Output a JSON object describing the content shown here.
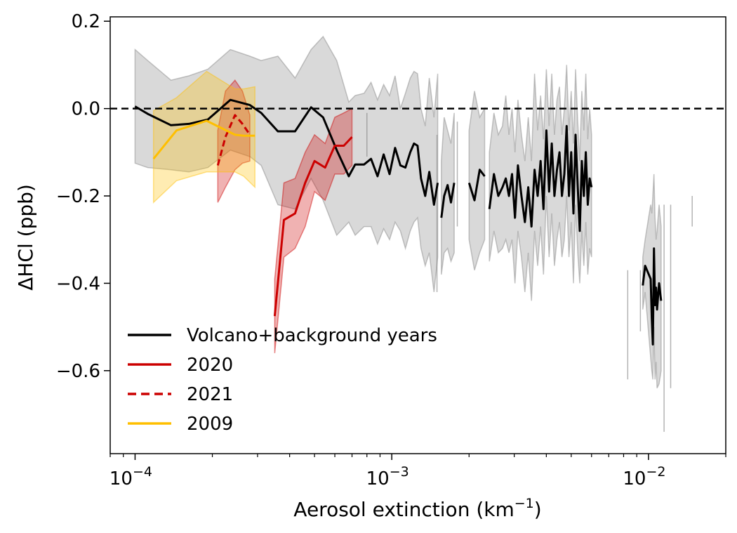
{
  "chart_data": {
    "type": "line",
    "xlabel": "Aerosol extinction (km",
    "xlabel_sup": "−1",
    "xlabel_close": ")",
    "ylabel": "ΔHCl (ppb)",
    "xscale": "log",
    "xlim": [
      8e-05,
      0.02
    ],
    "ylim": [
      -0.79,
      0.21
    ],
    "x_ticks": [
      {
        "value": 0.0001,
        "base": "10",
        "exp": "−4"
      },
      {
        "value": 0.001,
        "base": "10",
        "exp": "−3"
      },
      {
        "value": 0.01,
        "base": "10",
        "exp": "−2"
      }
    ],
    "y_ticks": [
      {
        "value": 0.2,
        "label": "0.2"
      },
      {
        "value": 0.0,
        "label": "0.0"
      },
      {
        "value": -0.2,
        "label": "−0.2"
      },
      {
        "value": -0.4,
        "label": "−0.4"
      },
      {
        "value": -0.6,
        "label": "−0.6"
      }
    ],
    "zero_line": {
      "y": 0.0,
      "style": "dashed",
      "color": "#000000"
    },
    "legend": {
      "placement": "lower-left",
      "entries": [
        {
          "label": "Volcano+background years",
          "color": "#000000",
          "style": "solid"
        },
        {
          "label": "2020",
          "color": "#cc0000",
          "style": "solid"
        },
        {
          "label": "2021",
          "color": "#cc0000",
          "style": "dashed"
        },
        {
          "label": "2009",
          "color": "#ffbf00",
          "style": "solid"
        }
      ]
    },
    "series": [
      {
        "key": "volcano",
        "color": "#000000",
        "band_color": "#808080",
        "style": "solid",
        "segments": [
          {
            "x": [
              0.0001,
              0.000112,
              0.000138,
              0.000162,
              0.000192,
              0.000235,
              0.00028,
              0.00031,
              0.00036,
              0.00042,
              0.000485,
              0.00054,
              0.00061,
              0.00068,
              0.00072,
              0.00078,
              0.00083,
              0.00088,
              0.00093,
              0.00098,
              0.00103,
              0.00108,
              0.00113,
              0.00118,
              0.00122,
              0.00126,
              0.0013,
              0.00135,
              0.0014,
              0.00146,
              0.00151
            ],
            "y": [
              0.005,
              -0.012,
              -0.038,
              -0.035,
              -0.025,
              0.02,
              0.008,
              -0.01,
              -0.052,
              -0.052,
              0.003,
              -0.02,
              -0.095,
              -0.155,
              -0.128,
              -0.128,
              -0.115,
              -0.155,
              -0.105,
              -0.15,
              -0.09,
              -0.13,
              -0.135,
              -0.1,
              -0.08,
              -0.085,
              -0.16,
              -0.2,
              -0.145,
              -0.22,
              -0.17
            ],
            "upper": [
              0.135,
              0.11,
              0.065,
              0.075,
              0.09,
              0.135,
              0.12,
              0.11,
              0.12,
              0.07,
              0.135,
              0.165,
              0.11,
              0.015,
              0.03,
              0.035,
              0.06,
              0.02,
              0.055,
              0.03,
              0.075,
              0.0,
              0.035,
              0.07,
              0.085,
              0.08,
              0.0,
              -0.04,
              0.07,
              -0.02,
              0.08
            ],
            "lower": [
              -0.125,
              -0.135,
              -0.14,
              -0.145,
              -0.135,
              -0.095,
              -0.11,
              -0.13,
              -0.22,
              -0.23,
              -0.16,
              -0.21,
              -0.29,
              -0.26,
              -0.29,
              -0.27,
              -0.27,
              -0.31,
              -0.275,
              -0.3,
              -0.26,
              -0.28,
              -0.32,
              -0.28,
              -0.26,
              -0.25,
              -0.32,
              -0.36,
              -0.33,
              -0.42,
              -0.34
            ]
          },
          {
            "x": [
              0.00156,
              0.0016,
              0.00165,
              0.0017,
              0.00175
            ],
            "y": [
              -0.25,
              -0.2,
              -0.175,
              -0.215,
              -0.17
            ],
            "upper": [
              -0.12,
              -0.02,
              -0.05,
              -0.08,
              -0.01
            ],
            "lower": [
              -0.38,
              -0.33,
              -0.32,
              -0.35,
              -0.33
            ]
          },
          {
            "x": [
              0.002,
              0.0021,
              0.0022,
              0.0023
            ],
            "y": [
              -0.17,
              -0.21,
              -0.14,
              -0.155
            ],
            "upper": [
              -0.05,
              0.04,
              -0.02,
              0.0
            ],
            "lower": [
              -0.3,
              -0.37,
              -0.33,
              -0.3
            ]
          },
          {
            "x": [
              0.0024,
              0.0025,
              0.0026,
              0.0027,
              0.00278,
              0.00286,
              0.00294,
              0.00302,
              0.0031,
              0.0032,
              0.0033,
              0.0034,
              0.0035,
              0.0036,
              0.0037,
              0.0038,
              0.0039,
              0.004,
              0.0041,
              0.0042,
              0.0043,
              0.0044,
              0.0045,
              0.0046,
              0.0047,
              0.0048,
              0.0049,
              0.005,
              0.0051,
              0.0052,
              0.0053,
              0.0054,
              0.0055,
              0.0056,
              0.0057,
              0.0058,
              0.0059,
              0.006
            ],
            "y": [
              -0.23,
              -0.15,
              -0.2,
              -0.18,
              -0.16,
              -0.2,
              -0.15,
              -0.25,
              -0.13,
              -0.2,
              -0.26,
              -0.18,
              -0.27,
              -0.14,
              -0.2,
              -0.12,
              -0.23,
              -0.05,
              -0.19,
              -0.08,
              -0.2,
              -0.14,
              -0.1,
              -0.2,
              -0.15,
              -0.04,
              -0.2,
              -0.1,
              -0.24,
              -0.06,
              -0.18,
              -0.28,
              -0.12,
              -0.2,
              -0.1,
              -0.22,
              -0.16,
              -0.18
            ],
            "upper": [
              -0.1,
              -0.01,
              -0.06,
              -0.04,
              0.03,
              -0.06,
              0.0,
              -0.1,
              0.02,
              -0.06,
              -0.12,
              -0.02,
              -0.12,
              0.08,
              -0.05,
              0.03,
              -0.07,
              0.09,
              -0.04,
              0.08,
              -0.06,
              0.02,
              0.05,
              -0.06,
              0.0,
              0.1,
              -0.05,
              0.04,
              -0.08,
              0.09,
              -0.03,
              -0.12,
              0.04,
              -0.05,
              0.08,
              -0.07,
              0.0,
              -0.06
            ],
            "lower": [
              -0.35,
              -0.28,
              -0.33,
              -0.32,
              -0.3,
              -0.33,
              -0.3,
              -0.4,
              -0.28,
              -0.34,
              -0.42,
              -0.33,
              -0.44,
              -0.28,
              -0.36,
              -0.27,
              -0.38,
              -0.2,
              -0.34,
              -0.24,
              -0.36,
              -0.3,
              -0.26,
              -0.34,
              -0.3,
              -0.2,
              -0.34,
              -0.26,
              -0.4,
              -0.22,
              -0.33,
              -0.4,
              -0.28,
              -0.36,
              -0.26,
              -0.38,
              -0.32,
              -0.34
            ]
          },
          {
            "x": [
              0.0095,
              0.0097,
              0.0102,
              0.0103,
              0.0104,
              0.0105,
              0.0106,
              0.0107,
              0.0108,
              0.011,
              0.0112
            ],
            "y": [
              -0.405,
              -0.36,
              -0.39,
              -0.48,
              -0.54,
              -0.32,
              -0.45,
              -0.41,
              -0.46,
              -0.4,
              -0.44
            ],
            "upper": [
              -0.34,
              -0.3,
              -0.22,
              -0.24,
              -0.2,
              -0.15,
              -0.25,
              -0.3,
              -0.28,
              -0.22,
              -0.27
            ],
            "lower": [
              -0.46,
              -0.42,
              -0.57,
              -0.6,
              -0.62,
              -0.5,
              -0.62,
              -0.58,
              -0.64,
              -0.63,
              -0.6
            ]
          }
        ],
        "isolated_error_bars": [
          {
            "x": 0.0015,
            "upper": -0.06,
            "lower": -0.42
          },
          {
            "x": 0.0008,
            "upper": -0.01,
            "lower": -0.11
          },
          {
            "x": 0.0018,
            "upper": -0.03,
            "lower": -0.27
          },
          {
            "x": 0.0083,
            "upper": -0.37,
            "lower": -0.62
          },
          {
            "x": 0.0093,
            "upper": -0.37,
            "lower": -0.51
          },
          {
            "x": 0.0115,
            "upper": -0.22,
            "lower": -0.74
          },
          {
            "x": 0.0122,
            "upper": -0.22,
            "lower": -0.64
          },
          {
            "x": 0.0148,
            "upper": -0.2,
            "lower": -0.27
          }
        ]
      },
      {
        "key": "y2020",
        "color": "#cc0000",
        "band_color": "#cc0000",
        "style": "solid",
        "segments": [
          {
            "x": [
              0.00035,
              0.00038,
              0.00042,
              0.00046,
              0.0005,
              0.00055,
              0.0006,
              0.00065,
              0.0007
            ],
            "y": [
              -0.475,
              -0.255,
              -0.24,
              -0.17,
              -0.12,
              -0.135,
              -0.085,
              -0.085,
              -0.065
            ],
            "upper": [
              -0.39,
              -0.17,
              -0.16,
              -0.1,
              -0.06,
              -0.08,
              -0.02,
              -0.01,
              0.0
            ],
            "lower": [
              -0.56,
              -0.34,
              -0.32,
              -0.27,
              -0.19,
              -0.21,
              -0.15,
              -0.15,
              -0.13
            ]
          }
        ]
      },
      {
        "key": "y2021",
        "color": "#cc0000",
        "band_color": "#cc0000",
        "style": "dashed",
        "segments": [
          {
            "x": [
              0.00021,
              0.000225,
              0.000245,
              0.000262,
              0.00028
            ],
            "y": [
              -0.13,
              -0.065,
              -0.015,
              -0.035,
              -0.06
            ],
            "upper": [
              -0.05,
              0.04,
              0.065,
              0.04,
              -0.015
            ],
            "lower": [
              -0.215,
              -0.18,
              -0.14,
              -0.125,
              -0.12
            ]
          }
        ]
      },
      {
        "key": "y2009",
        "color": "#ffbf00",
        "band_color": "#ffbf00",
        "style": "solid",
        "segments": [
          {
            "x": [
              0.000118,
              0.000145,
              0.00019,
              0.000245,
              0.000265,
              0.000293
            ],
            "y": [
              -0.115,
              -0.05,
              -0.028,
              -0.06,
              -0.062,
              -0.062
            ],
            "upper": [
              -0.005,
              0.025,
              0.085,
              0.045,
              0.045,
              0.05
            ],
            "lower": [
              -0.215,
              -0.165,
              -0.145,
              -0.145,
              -0.155,
              -0.18
            ]
          }
        ]
      }
    ]
  }
}
